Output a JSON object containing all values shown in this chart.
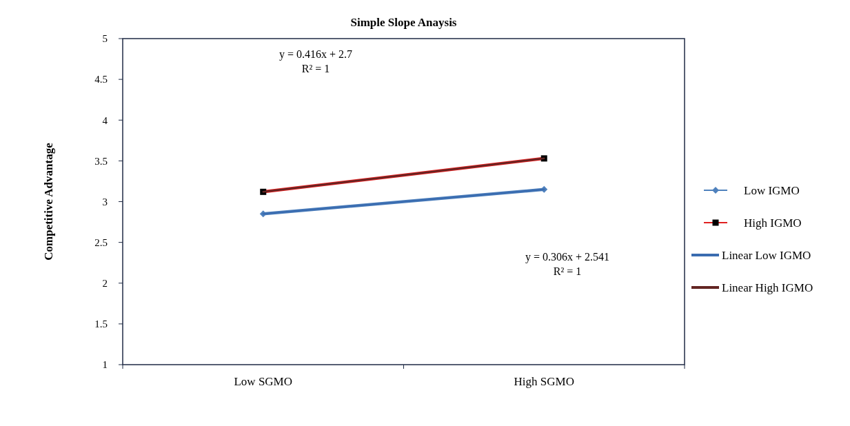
{
  "chart_data": {
    "type": "line",
    "title": "Simple Slope Anaysis",
    "ylabel": "Competitive Advantage",
    "categories": [
      "Low SGMO",
      "High SGMO"
    ],
    "series": [
      {
        "name": "Low IGMO",
        "color": "#4f81bd",
        "values": [
          2.85,
          3.15
        ],
        "marker": "diamond"
      },
      {
        "name": "High IGMO",
        "color": "#e02020",
        "values": [
          3.12,
          3.53
        ],
        "marker": "square"
      },
      {
        "name": "Linear Low IGMO",
        "color": "#3a6cb0",
        "values": [
          2.85,
          3.15
        ],
        "marker": "none"
      },
      {
        "name": "Linear High IGMO",
        "color": "#632523",
        "values": [
          3.12,
          3.53
        ],
        "marker": "none"
      }
    ],
    "ylim": [
      1,
      5
    ],
    "yticks": [
      1,
      1.5,
      2,
      2.5,
      3,
      3.5,
      4,
      4.5,
      5
    ],
    "annotations": [
      "y = 0.416x + 2.7\nR² = 1",
      "y = 0.306x + 2.541\nR² = 1"
    ],
    "legend": "right",
    "grid": false
  }
}
